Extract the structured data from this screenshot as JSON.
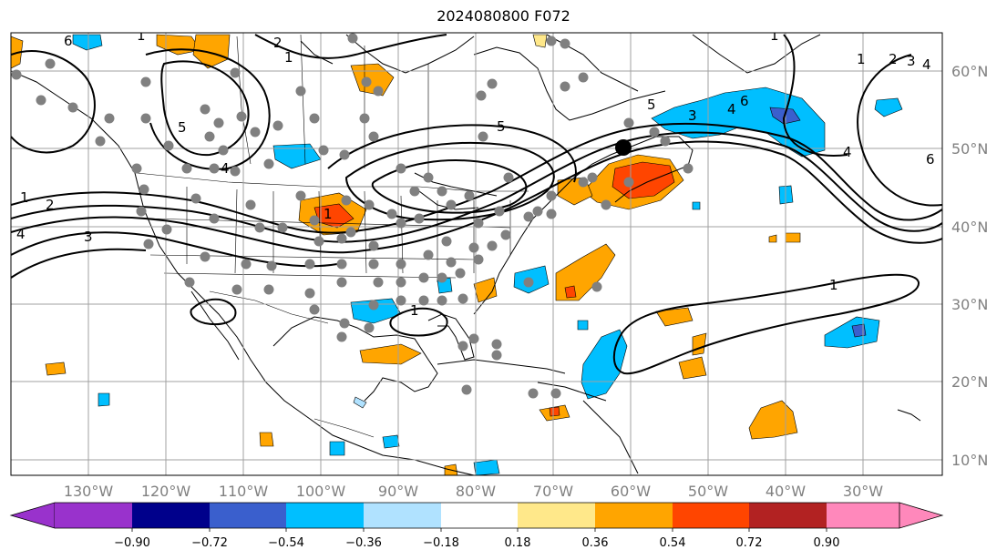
{
  "title": "2024080800 F072",
  "lon_labels": [
    "130°W",
    "120°W",
    "110°W",
    "100°W",
    "90°W",
    "80°W",
    "70°W",
    "60°W",
    "50°W",
    "40°W",
    "30°W"
  ],
  "lat_labels": [
    "60°N",
    "50°N",
    "40°N",
    "30°N",
    "20°N",
    "10°N"
  ],
  "colorbar": {
    "ticks": [
      "−0.90",
      "−0.72",
      "−0.54",
      "−0.36",
      "−0.18",
      "0.18",
      "0.36",
      "0.54",
      "0.72",
      "0.90"
    ],
    "colors": [
      "#9932CC",
      "#00008B",
      "#3A5FCD",
      "#00BFFF",
      "#B0E2FF",
      "#FFFFFF",
      "#FFE88A",
      "#FFA500",
      "#FF4500",
      "#B22222",
      "#FF88BB"
    ]
  },
  "contour_labels": [
    "1",
    "2",
    "3",
    "4",
    "5",
    "6"
  ],
  "palette": {
    "gray_station": "#808080",
    "marker": "#000000"
  }
}
